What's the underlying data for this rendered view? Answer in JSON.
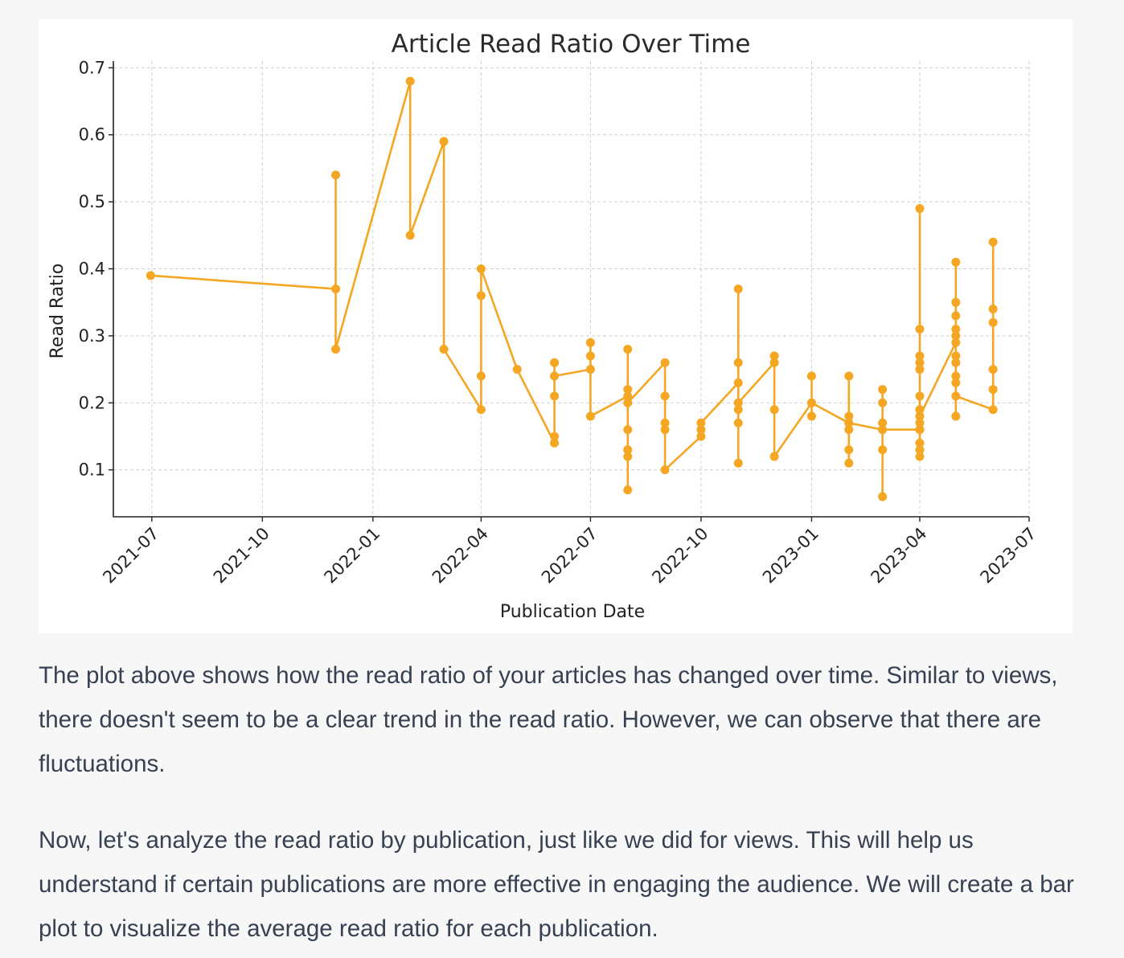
{
  "chart_data": {
    "type": "line",
    "title": "Article Read Ratio Over Time",
    "xlabel": "Publication Date",
    "ylabel": "Read Ratio",
    "xlim": [
      "2021-05-30",
      "2023-07-01"
    ],
    "ylim": [
      0.03,
      0.71
    ],
    "grid": true,
    "x_ticks": [
      "2021-07",
      "2021-10",
      "2022-01",
      "2022-04",
      "2022-07",
      "2022-10",
      "2023-01",
      "2023-04",
      "2023-07"
    ],
    "y_ticks": [
      "0.1",
      "0.2",
      "0.3",
      "0.4",
      "0.5",
      "0.6",
      "0.7"
    ],
    "color": "#f5a623",
    "points": [
      {
        "x": "2021-06-30",
        "y": 0.39
      },
      {
        "x": "2021-12-01",
        "y": 0.37
      },
      {
        "x": "2021-12-01",
        "y": 0.54
      },
      {
        "x": "2021-12-01",
        "y": 0.28
      },
      {
        "x": "2022-02-01",
        "y": 0.68
      },
      {
        "x": "2022-02-01",
        "y": 0.45
      },
      {
        "x": "2022-03-01",
        "y": 0.59
      },
      {
        "x": "2022-03-01",
        "y": 0.28
      },
      {
        "x": "2022-04-01",
        "y": 0.19
      },
      {
        "x": "2022-04-01",
        "y": 0.24
      },
      {
        "x": "2022-04-01",
        "y": 0.36
      },
      {
        "x": "2022-04-01",
        "y": 0.4
      },
      {
        "x": "2022-05-01",
        "y": 0.25
      },
      {
        "x": "2022-06-01",
        "y": 0.14
      },
      {
        "x": "2022-06-01",
        "y": 0.15
      },
      {
        "x": "2022-06-01",
        "y": 0.21
      },
      {
        "x": "2022-06-01",
        "y": 0.26
      },
      {
        "x": "2022-06-01",
        "y": 0.24
      },
      {
        "x": "2022-07-01",
        "y": 0.25
      },
      {
        "x": "2022-07-01",
        "y": 0.29
      },
      {
        "x": "2022-07-01",
        "y": 0.27
      },
      {
        "x": "2022-07-01",
        "y": 0.18
      },
      {
        "x": "2022-08-01",
        "y": 0.21
      },
      {
        "x": "2022-08-01",
        "y": 0.28
      },
      {
        "x": "2022-08-01",
        "y": 0.22
      },
      {
        "x": "2022-08-01",
        "y": 0.16
      },
      {
        "x": "2022-08-01",
        "y": 0.13
      },
      {
        "x": "2022-08-01",
        "y": 0.12
      },
      {
        "x": "2022-08-01",
        "y": 0.07
      },
      {
        "x": "2022-08-01",
        "y": 0.2
      },
      {
        "x": "2022-09-01",
        "y": 0.26
      },
      {
        "x": "2022-09-01",
        "y": 0.21
      },
      {
        "x": "2022-09-01",
        "y": 0.17
      },
      {
        "x": "2022-09-01",
        "y": 0.16
      },
      {
        "x": "2022-09-01",
        "y": 0.1
      },
      {
        "x": "2022-10-01",
        "y": 0.15
      },
      {
        "x": "2022-10-01",
        "y": 0.16
      },
      {
        "x": "2022-10-01",
        "y": 0.17
      },
      {
        "x": "2022-11-01",
        "y": 0.23
      },
      {
        "x": "2022-11-01",
        "y": 0.37
      },
      {
        "x": "2022-11-01",
        "y": 0.26
      },
      {
        "x": "2022-11-01",
        "y": 0.2
      },
      {
        "x": "2022-11-01",
        "y": 0.19
      },
      {
        "x": "2022-11-01",
        "y": 0.17
      },
      {
        "x": "2022-11-01",
        "y": 0.11
      },
      {
        "x": "2022-11-01",
        "y": 0.2
      },
      {
        "x": "2022-12-01",
        "y": 0.26
      },
      {
        "x": "2022-12-01",
        "y": 0.27
      },
      {
        "x": "2022-12-01",
        "y": 0.19
      },
      {
        "x": "2022-12-01",
        "y": 0.12
      },
      {
        "x": "2023-01-01",
        "y": 0.2
      },
      {
        "x": "2023-01-01",
        "y": 0.24
      },
      {
        "x": "2023-01-01",
        "y": 0.18
      },
      {
        "x": "2023-01-01",
        "y": 0.2
      },
      {
        "x": "2023-02-01",
        "y": 0.17
      },
      {
        "x": "2023-02-01",
        "y": 0.24
      },
      {
        "x": "2023-02-01",
        "y": 0.18
      },
      {
        "x": "2023-02-01",
        "y": 0.16
      },
      {
        "x": "2023-02-01",
        "y": 0.13
      },
      {
        "x": "2023-02-01",
        "y": 0.11
      },
      {
        "x": "2023-02-01",
        "y": 0.17
      },
      {
        "x": "2023-03-01",
        "y": 0.16
      },
      {
        "x": "2023-03-01",
        "y": 0.22
      },
      {
        "x": "2023-03-01",
        "y": 0.2
      },
      {
        "x": "2023-03-01",
        "y": 0.17
      },
      {
        "x": "2023-03-01",
        "y": 0.13
      },
      {
        "x": "2023-03-01",
        "y": 0.06
      },
      {
        "x": "2023-03-01",
        "y": 0.16
      },
      {
        "x": "2023-04-01",
        "y": 0.16
      },
      {
        "x": "2023-04-01",
        "y": 0.49
      },
      {
        "x": "2023-04-01",
        "y": 0.31
      },
      {
        "x": "2023-04-01",
        "y": 0.27
      },
      {
        "x": "2023-04-01",
        "y": 0.26
      },
      {
        "x": "2023-04-01",
        "y": 0.25
      },
      {
        "x": "2023-04-01",
        "y": 0.21
      },
      {
        "x": "2023-04-01",
        "y": 0.19
      },
      {
        "x": "2023-04-01",
        "y": 0.17
      },
      {
        "x": "2023-04-01",
        "y": 0.16
      },
      {
        "x": "2023-04-01",
        "y": 0.14
      },
      {
        "x": "2023-04-01",
        "y": 0.13
      },
      {
        "x": "2023-04-01",
        "y": 0.12
      },
      {
        "x": "2023-04-01",
        "y": 0.18
      },
      {
        "x": "2023-05-01",
        "y": 0.29
      },
      {
        "x": "2023-05-01",
        "y": 0.41
      },
      {
        "x": "2023-05-01",
        "y": 0.35
      },
      {
        "x": "2023-05-01",
        "y": 0.33
      },
      {
        "x": "2023-05-01",
        "y": 0.31
      },
      {
        "x": "2023-05-01",
        "y": 0.3
      },
      {
        "x": "2023-05-01",
        "y": 0.27
      },
      {
        "x": "2023-05-01",
        "y": 0.26
      },
      {
        "x": "2023-05-01",
        "y": 0.24
      },
      {
        "x": "2023-05-01",
        "y": 0.23
      },
      {
        "x": "2023-05-01",
        "y": 0.18
      },
      {
        "x": "2023-05-01",
        "y": 0.21
      },
      {
        "x": "2023-06-01",
        "y": 0.19
      },
      {
        "x": "2023-06-01",
        "y": 0.44
      },
      {
        "x": "2023-06-01",
        "y": 0.34
      },
      {
        "x": "2023-06-01",
        "y": 0.32
      },
      {
        "x": "2023-06-01",
        "y": 0.25
      },
      {
        "x": "2023-06-01",
        "y": 0.22
      }
    ]
  },
  "messages": {
    "p1": "The plot above shows how the read ratio of your articles has changed over time. Similar to views, there doesn't seem to be a clear trend in the read ratio. However, we can observe that there are fluctuations.",
    "p2": "Now, let's analyze the read ratio by publication, just like we did for views. This will help us understand if certain publications are more effective in engaging the audience. We will create a bar plot to visualize the average read ratio for each publication."
  }
}
